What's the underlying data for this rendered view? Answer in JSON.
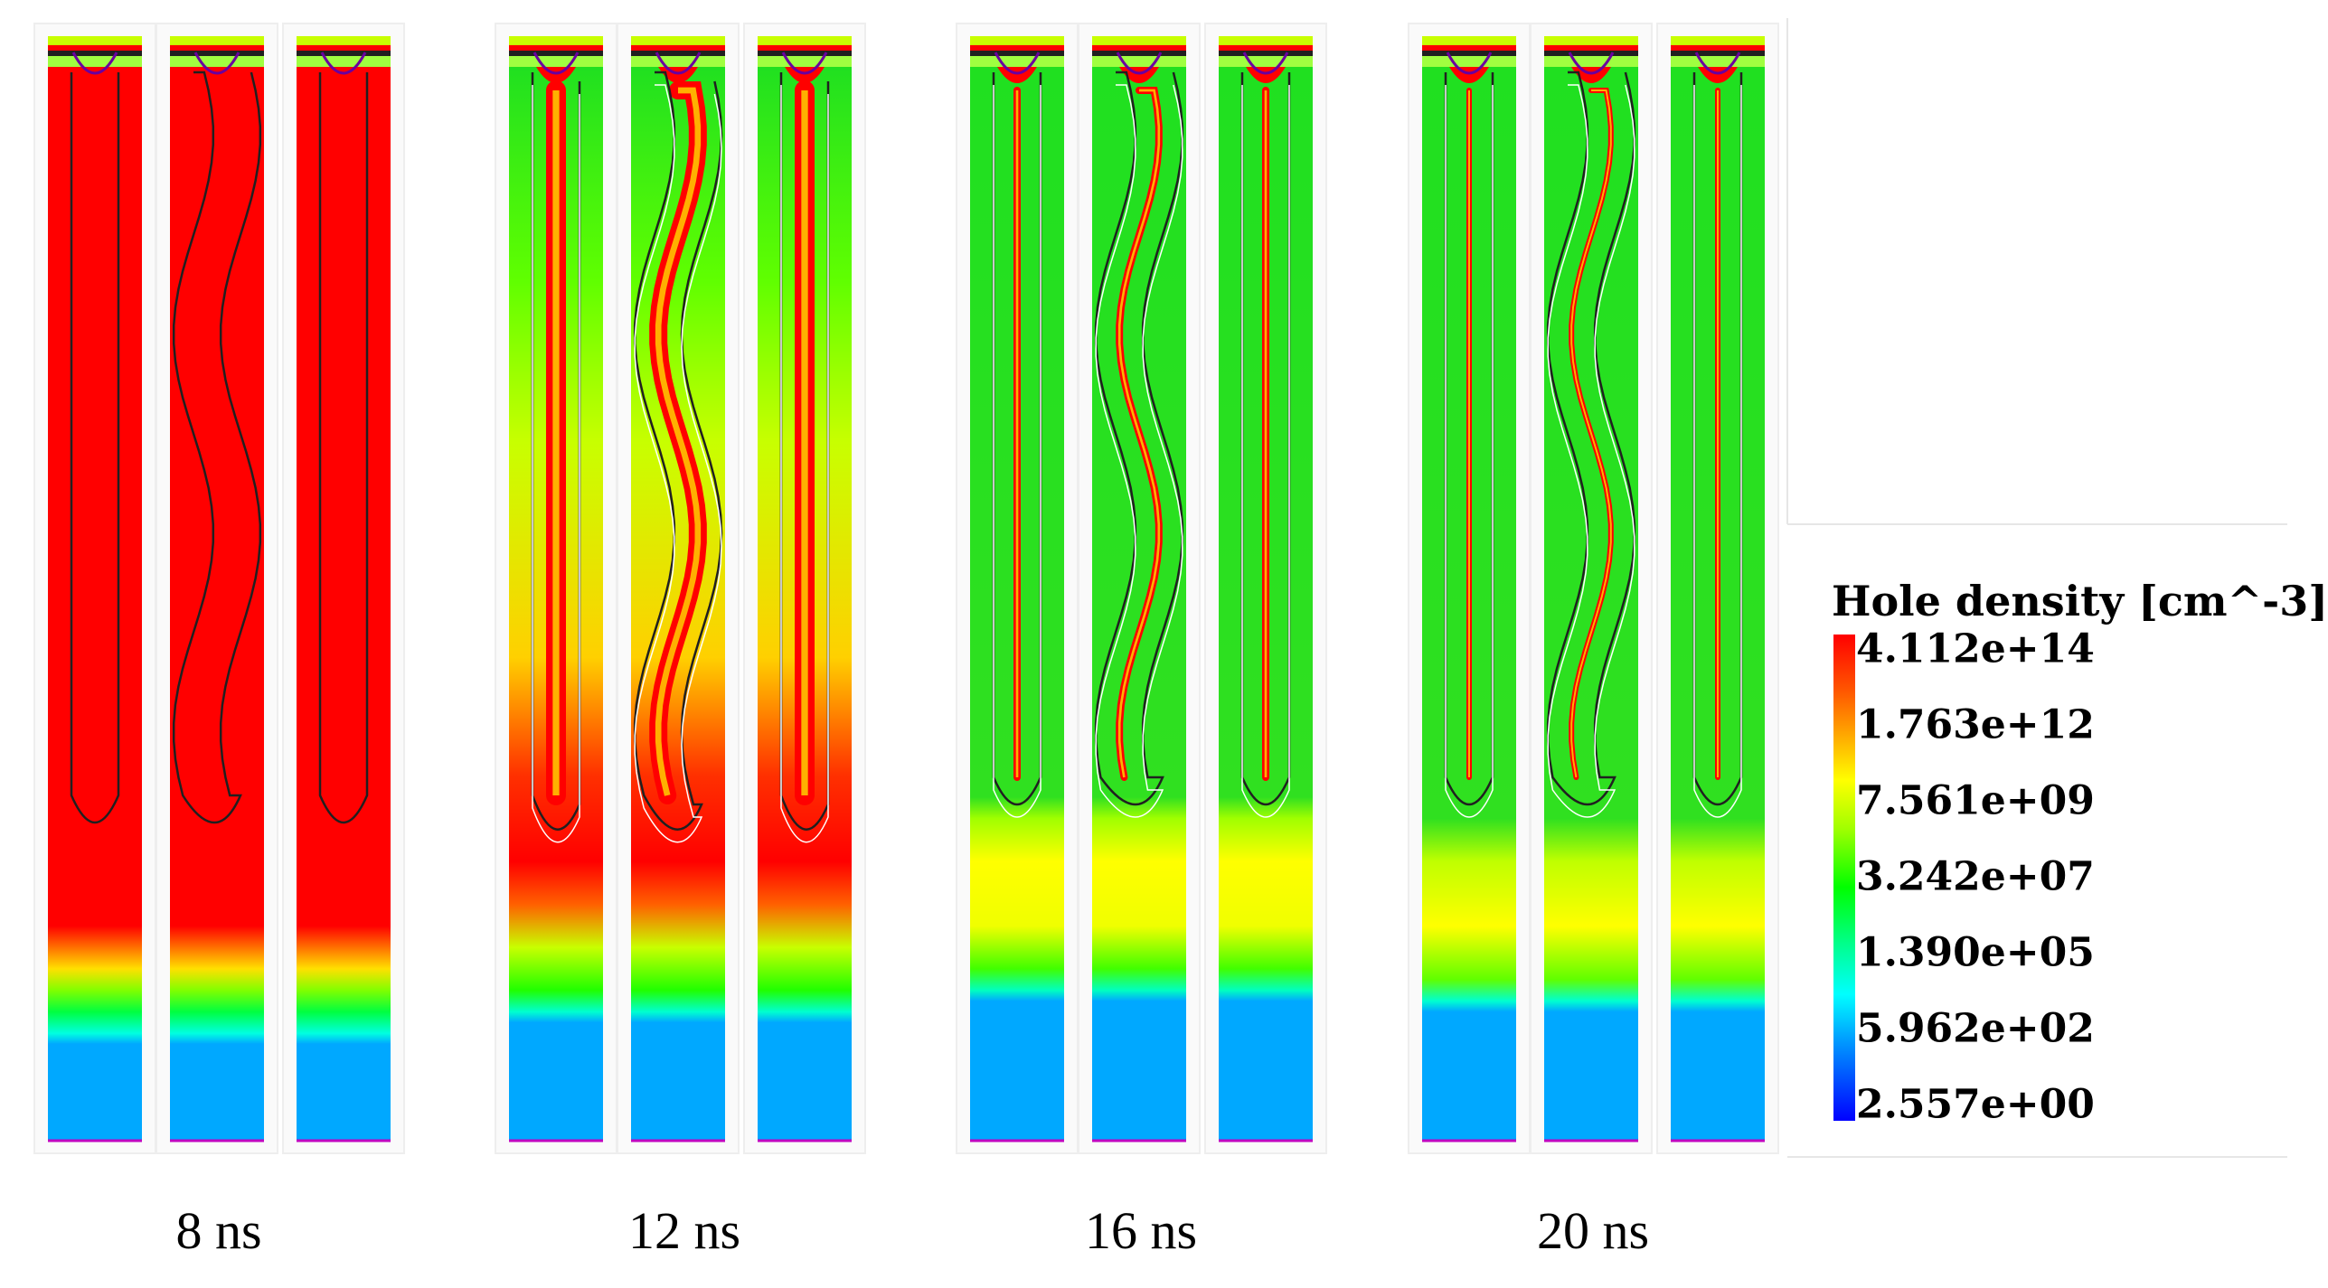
{
  "time_labels": [
    "8 ns",
    "12 ns",
    "16 ns",
    "20 ns"
  ],
  "legend": {
    "title": "Hole density [cm^-3]",
    "ticks": [
      "4.112e+14",
      "1.763e+12",
      "7.561e+09",
      "3.242e+07",
      "1.390e+05",
      "5.962e+02",
      "2.557e+00"
    ],
    "colors": [
      "#ff0000",
      "#ff3a00",
      "#ff7a00",
      "#ffb000",
      "#ffe000",
      "#ffff00",
      "#c8ff00",
      "#80ff00",
      "#40ff00",
      "#00ff00",
      "#00ff80",
      "#00ffe0",
      "#00c8ff",
      "#0080ff",
      "#0040ff",
      "#0000ff"
    ]
  },
  "groups": [
    {
      "time": "8 ns",
      "variant": 0
    },
    {
      "time": "12 ns",
      "variant": 1
    },
    {
      "time": "16 ns",
      "variant": 2
    },
    {
      "time": "20 ns",
      "variant": 3
    }
  ]
}
